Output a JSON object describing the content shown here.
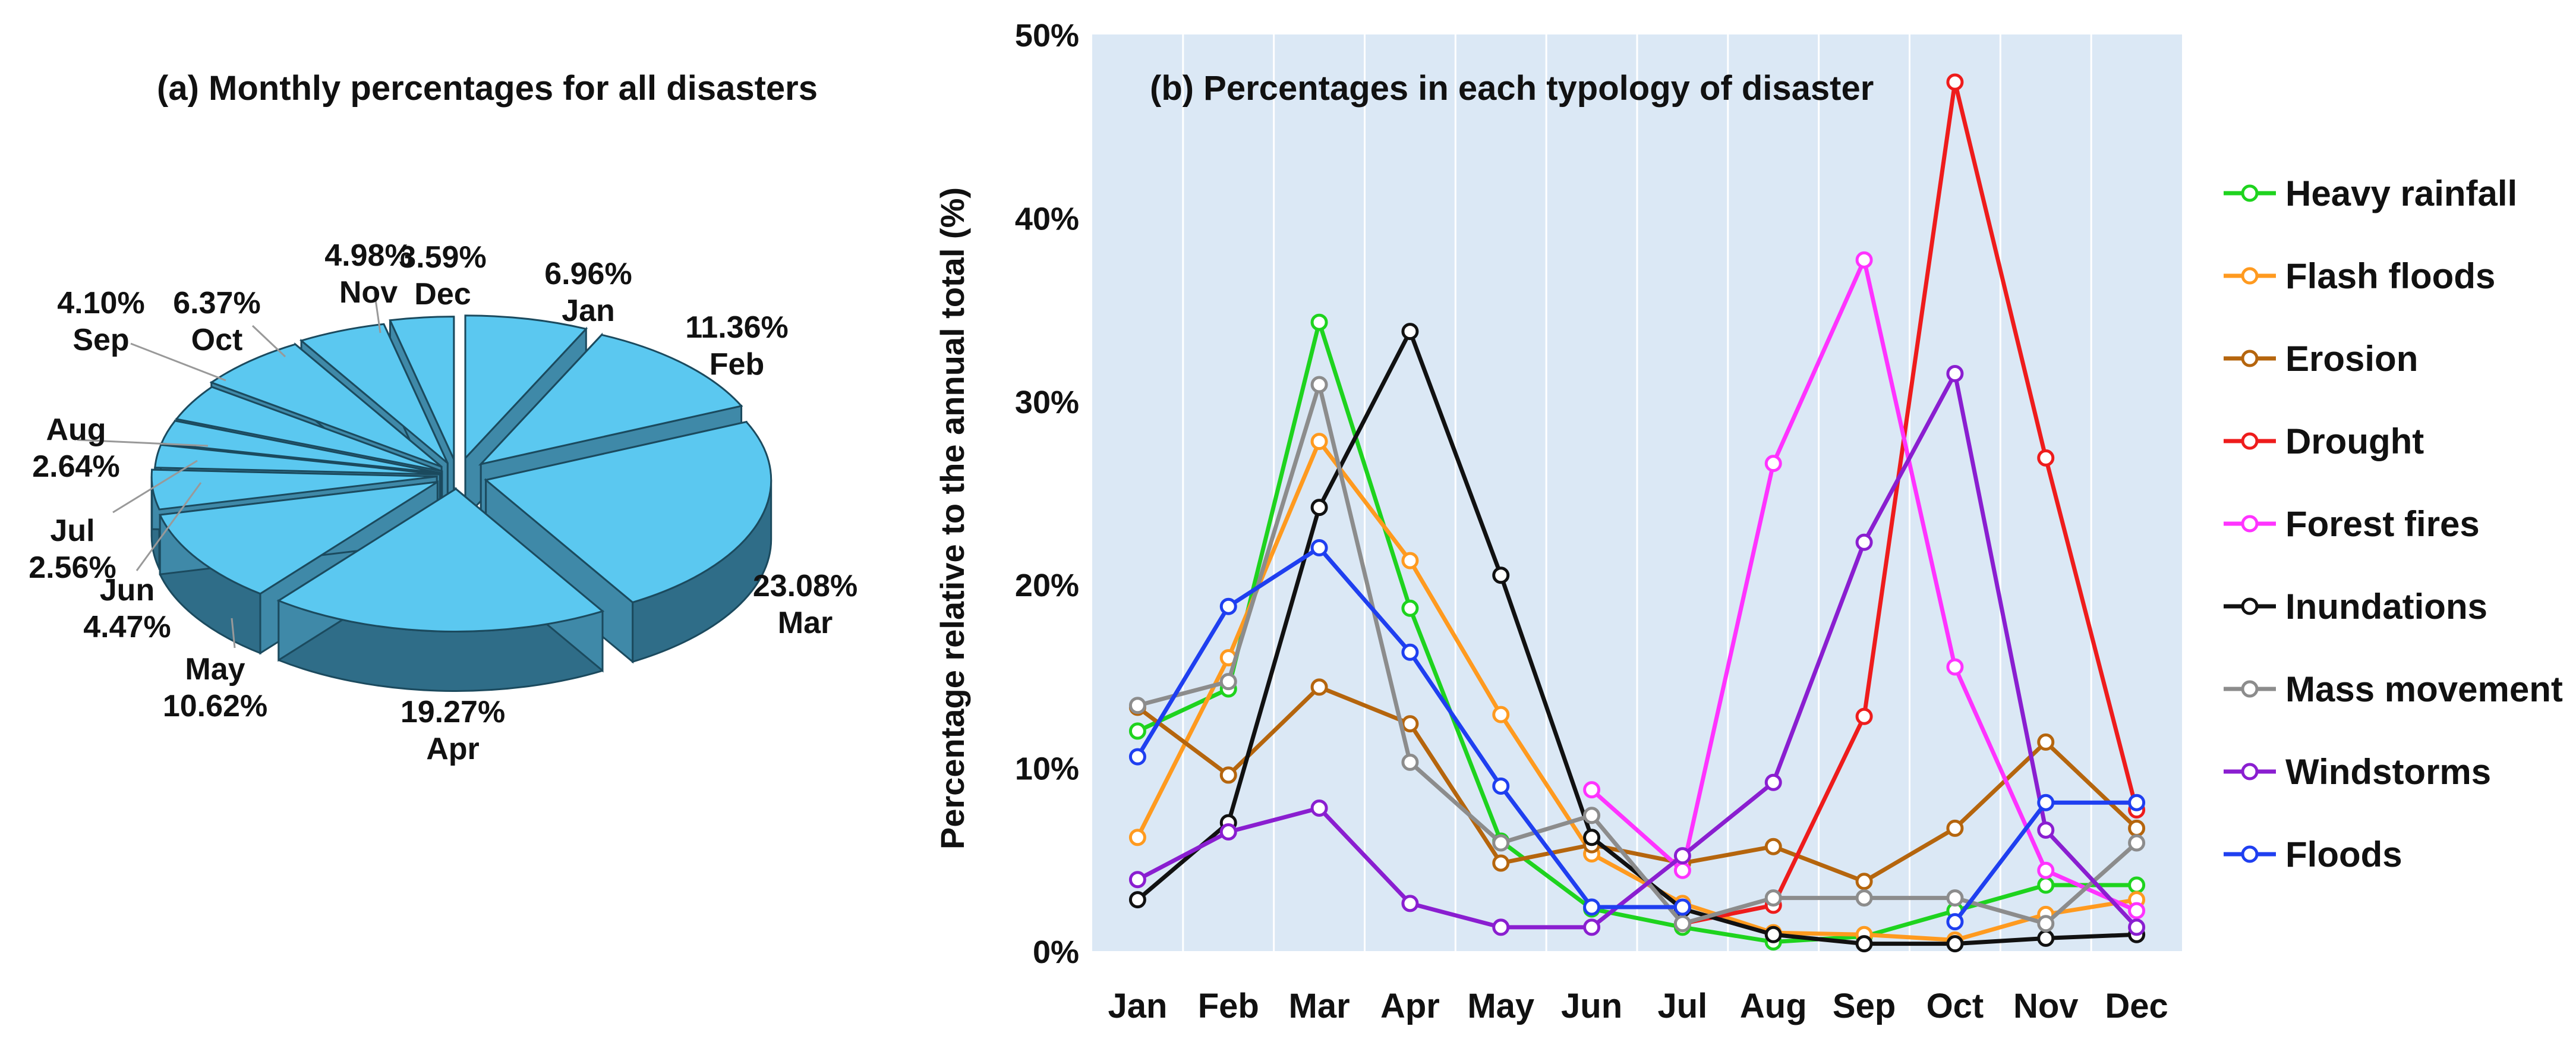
{
  "chart_data": [
    {
      "type": "pie",
      "title": "(a) Monthly percentages for all disasters",
      "style": "exploded 3D pie",
      "slice_color": "#5bc8f0",
      "slices": [
        {
          "label": "Jan",
          "value": 6.96,
          "text": "6.96%"
        },
        {
          "label": "Feb",
          "value": 11.36,
          "text": "11.36%"
        },
        {
          "label": "Mar",
          "value": 23.08,
          "text": "23.08%"
        },
        {
          "label": "Apr",
          "value": 19.27,
          "text": "19.27%"
        },
        {
          "label": "May",
          "value": 10.62,
          "text": "10.62%"
        },
        {
          "label": "Jun",
          "value": 4.47,
          "text": "4.47%"
        },
        {
          "label": "Jul",
          "value": 2.56,
          "text": "2.56%"
        },
        {
          "label": "Aug",
          "value": 2.64,
          "text": "2.64%"
        },
        {
          "label": "Sep",
          "value": 4.1,
          "text": "4.10%"
        },
        {
          "label": "Oct",
          "value": 6.37,
          "text": "6.37%"
        },
        {
          "label": "Nov",
          "value": 4.98,
          "text": "4.98%"
        },
        {
          "label": "Dec",
          "value": 3.59,
          "text": "3.59%"
        }
      ]
    },
    {
      "type": "line",
      "title": "(b) Percentages in each typology of disaster",
      "xlabel": "",
      "ylabel": "Percentage relative to the annual total (%)",
      "ylim": [
        0,
        50
      ],
      "yticks": [
        0,
        10,
        20,
        30,
        40,
        50
      ],
      "ytick_labels": [
        "0%",
        "10%",
        "20%",
        "30%",
        "40%",
        "50%"
      ],
      "grid": "vertical",
      "background": "#dbe8f5",
      "legend_position": "right",
      "categories": [
        "Jan",
        "Feb",
        "Mar",
        "Apr",
        "May",
        "Jun",
        "Jul",
        "Aug",
        "Sep",
        "Oct",
        "Nov",
        "Dec"
      ],
      "series": [
        {
          "name": "Heavy rainfall",
          "color": "#1ed31e",
          "values": [
            12.0,
            14.3,
            34.3,
            18.7,
            6.0,
            2.3,
            1.3,
            0.5,
            0.8,
            2.2,
            3.6,
            3.6
          ]
        },
        {
          "name": "Flash floods",
          "color": "#ff9a1f",
          "values": [
            6.2,
            16.0,
            27.8,
            21.3,
            12.9,
            5.3,
            2.6,
            1.0,
            0.9,
            0.6,
            2.0,
            2.8
          ]
        },
        {
          "name": "Erosion",
          "color": "#b5650d",
          "values": [
            13.3,
            9.6,
            14.4,
            12.4,
            4.8,
            5.8,
            4.8,
            5.7,
            3.8,
            6.7,
            11.4,
            6.7
          ]
        },
        {
          "name": "Drought",
          "color": "#ee1c1c",
          "values": [
            null,
            null,
            null,
            null,
            null,
            null,
            1.5,
            2.5,
            12.8,
            47.4,
            26.9,
            7.7
          ]
        },
        {
          "name": "Forest fires",
          "color": "#ff33ff",
          "values": [
            null,
            null,
            null,
            null,
            null,
            8.8,
            4.4,
            26.6,
            37.7,
            15.5,
            4.4,
            2.2
          ]
        },
        {
          "name": "Inundations",
          "color": "#111111",
          "values": [
            2.8,
            7.0,
            24.2,
            33.8,
            20.5,
            6.2,
            2.3,
            0.9,
            0.4,
            0.4,
            0.7,
            0.9
          ]
        },
        {
          "name": "Mass movement",
          "color": "#8c8c8c",
          "values": [
            13.4,
            14.7,
            30.9,
            10.3,
            5.9,
            7.4,
            1.5,
            2.9,
            2.9,
            2.9,
            1.5,
            5.9
          ]
        },
        {
          "name": "Windstorms",
          "color": "#8a1ed0",
          "values": [
            3.9,
            6.5,
            7.8,
            2.6,
            1.3,
            1.3,
            5.2,
            9.2,
            22.3,
            31.5,
            6.6,
            1.3
          ]
        },
        {
          "name": "Floods",
          "color": "#1f3ff0",
          "values": [
            10.6,
            18.8,
            22.0,
            16.3,
            9.0,
            2.4,
            2.4,
            null,
            null,
            1.6,
            8.1,
            8.1
          ]
        }
      ]
    }
  ]
}
